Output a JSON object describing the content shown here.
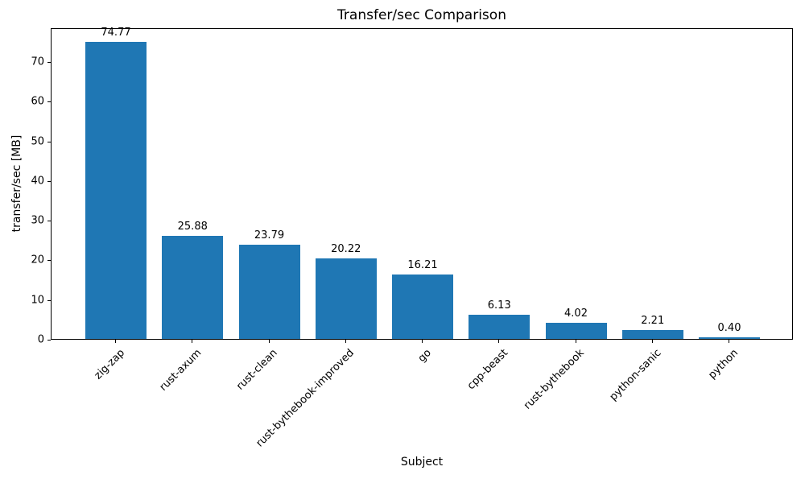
{
  "chart_data": {
    "type": "bar",
    "title": "Transfer/sec Comparison",
    "xlabel": "Subject",
    "ylabel": "transfer/sec [MB]",
    "categories": [
      "zig-zap",
      "rust-axum",
      "rust-clean",
      "rust-bythebook-improved",
      "go",
      "cpp-beast",
      "rust-bythebook",
      "python-sanic",
      "python"
    ],
    "values": [
      74.77,
      25.88,
      23.79,
      20.22,
      16.21,
      6.13,
      4.02,
      2.21,
      0.4
    ],
    "value_labels": [
      "74.77",
      "25.88",
      "23.79",
      "20.22",
      "16.21",
      "6.13",
      "4.02",
      "2.21",
      "0.40"
    ],
    "yticks": [
      0,
      10,
      20,
      30,
      40,
      50,
      60,
      70
    ],
    "ylim": [
      0,
      78.5
    ],
    "bar_color": "#1f77b4",
    "axis_color": "#000000",
    "text_color": "#000000",
    "grid": false,
    "legend": null,
    "x_tick_rotation_deg": 45
  }
}
